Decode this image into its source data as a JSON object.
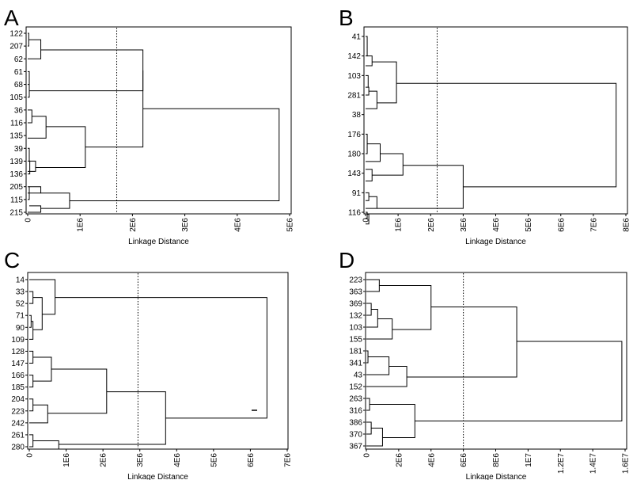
{
  "chart_data": [
    {
      "panel": "A",
      "type": "dendrogram",
      "orientation": "horizontal",
      "xlabel": "Linkage Distance",
      "xlim": [
        0,
        5000000
      ],
      "xticks": [
        "0",
        "1E6",
        "2E6",
        "3E6",
        "4E6",
        "5E6"
      ],
      "ylabels": [
        "122",
        "207",
        "62",
        "61",
        "68",
        "105",
        "36",
        "116",
        "135",
        "39",
        "139",
        "136",
        "205",
        "115",
        "215"
      ],
      "cut_height": 1700000,
      "merges": [
        {
          "h": 20000,
          "l": [
            0,
            0.0
          ],
          "r": [
            1,
            0.0
          ]
        },
        {
          "h": 250000,
          "l": [
            0.5,
            0.02
          ],
          "r": [
            2,
            0.0
          ]
        },
        {
          "h": 30000,
          "l": [
            3,
            0.0
          ],
          "r": [
            4,
            0.0
          ]
        },
        {
          "h": 30000,
          "l": [
            4,
            0.03
          ],
          "r": [
            5,
            0.0
          ]
        },
        {
          "h": 2200000,
          "l": [
            1.3,
            0.25
          ],
          "r": [
            4.5,
            0.03
          ]
        },
        {
          "h": 80000,
          "l": [
            6,
            0.0
          ],
          "r": [
            7,
            0.0
          ]
        },
        {
          "h": 350000,
          "l": [
            6.5,
            0.08
          ],
          "r": [
            8.2,
            0.0
          ]
        },
        {
          "h": 30000,
          "l": [
            9,
            0.0
          ],
          "r": [
            10,
            0.0
          ]
        },
        {
          "h": 40000,
          "l": [
            10,
            0.03
          ],
          "r": [
            11,
            0.0
          ]
        },
        {
          "h": 150000,
          "l": [
            10,
            0.04
          ],
          "r": [
            10.8,
            0.0
          ]
        },
        {
          "h": 1100000,
          "l": [
            7.3,
            0.35
          ],
          "r": [
            10.5,
            0.15
          ]
        },
        {
          "h": 2200000,
          "l": [
            2.9,
            2.2
          ],
          "r": [
            8.9,
            1.1
          ]
        },
        {
          "h": 30000,
          "l": [
            12,
            0.0
          ],
          "r": [
            13,
            0.0
          ]
        },
        {
          "h": 250000,
          "l": [
            12,
            0.03
          ],
          "r": [
            12.5,
            0.0
          ]
        },
        {
          "h": 250000,
          "l": [
            13.5,
            0.03
          ],
          "r": [
            14,
            0.0
          ]
        },
        {
          "h": 800000,
          "l": [
            12.5,
            0.25
          ],
          "r": [
            13.7,
            0.25
          ]
        },
        {
          "h": 4800000,
          "l": [
            5.9,
            2.2
          ],
          "r": [
            13.1,
            0.8
          ]
        }
      ]
    },
    {
      "panel": "B",
      "type": "dendrogram",
      "orientation": "horizontal",
      "xlabel": "Linkage Distance",
      "xlim": [
        0,
        8000000
      ],
      "xticks": [
        "0",
        "1E6",
        "2E6",
        "3E6",
        "4E6",
        "5E6",
        "6E6",
        "7E6",
        "8E6"
      ],
      "ylabels": [
        "41",
        "142",
        "103",
        "281",
        "38",
        "176",
        "180",
        "143",
        "91",
        "116"
      ],
      "cut_height": 2200000,
      "merges": [
        {
          "h": 50000,
          "l": [
            0,
            0.0
          ],
          "r": [
            1,
            0.0
          ]
        },
        {
          "h": 200000,
          "l": [
            1,
            0.05
          ],
          "r": [
            1.5,
            0.0
          ]
        },
        {
          "h": 80000,
          "l": [
            2,
            0.0
          ],
          "r": [
            2.6,
            0.0
          ]
        },
        {
          "h": 100000,
          "l": [
            2.6,
            0.08
          ],
          "r": [
            3,
            0.0
          ]
        },
        {
          "h": 350000,
          "l": [
            2.8,
            0.1
          ],
          "r": [
            3.7,
            0.0
          ]
        },
        {
          "h": 950000,
          "l": [
            1.3,
            0.2
          ],
          "r": [
            3.4,
            0.35
          ]
        },
        {
          "h": 50000,
          "l": [
            5,
            0.0
          ],
          "r": [
            6,
            0.0
          ]
        },
        {
          "h": 450000,
          "l": [
            5.5,
            0.05
          ],
          "r": [
            6.4,
            0.0
          ]
        },
        {
          "h": 200000,
          "l": [
            6.8,
            0.0
          ],
          "r": [
            7.4,
            0.0
          ]
        },
        {
          "h": 1150000,
          "l": [
            6,
            0.45
          ],
          "r": [
            7.1,
            0.2
          ]
        },
        {
          "h": 100000,
          "l": [
            8,
            0.0
          ],
          "r": [
            8.4,
            0.0
          ]
        },
        {
          "h": 350000,
          "l": [
            8.2,
            0.1
          ],
          "r": [
            8.8,
            0.0
          ]
        },
        {
          "h": 50000,
          "l": [
            9,
            0.0
          ],
          "r": [
            9.3,
            0.0
          ]
        },
        {
          "h": 100000,
          "l": [
            9.1,
            0.05
          ],
          "r": [
            9.6,
            0.0
          ]
        },
        {
          "h": 3000000,
          "l": [
            6.6,
            1.15
          ],
          "r": [
            8.8,
            0.35
          ]
        },
        {
          "h": 7700000,
          "l": [
            2.4,
            0.95
          ],
          "r": [
            7.7,
            3.0
          ]
        }
      ]
    },
    {
      "panel": "C",
      "type": "dendrogram",
      "orientation": "horizontal",
      "xlabel": "Linkage Distance",
      "xlim": [
        0,
        7000000
      ],
      "xticks": [
        "0",
        "1E6",
        "2E6",
        "3E6",
        "4E6",
        "5E6",
        "6E6",
        "7E6"
      ],
      "ylabels": [
        "14",
        "33",
        "52",
        "71",
        "90",
        "109",
        "128",
        "147",
        "166",
        "185",
        "204",
        "223",
        "242",
        "261",
        "280"
      ],
      "cut_height": 2950000,
      "merges": [
        {
          "h": 100000,
          "l": [
            1,
            0.0
          ],
          "r": [
            2,
            0.0
          ]
        },
        {
          "h": 50000,
          "l": [
            3,
            0.0
          ],
          "r": [
            4,
            0.0
          ]
        },
        {
          "h": 100000,
          "l": [
            3.5,
            0.05
          ],
          "r": [
            5,
            0.0
          ]
        },
        {
          "h": 350000,
          "l": [
            1.5,
            0.1
          ],
          "r": [
            4.2,
            0.1
          ]
        },
        {
          "h": 700000,
          "l": [
            0,
            0.0
          ],
          "r": [
            2.9,
            0.35
          ]
        },
        {
          "h": 100000,
          "l": [
            6,
            0.0
          ],
          "r": [
            7,
            0.0
          ]
        },
        {
          "h": 100000,
          "l": [
            8,
            0.0
          ],
          "r": [
            9,
            0.0
          ]
        },
        {
          "h": 600000,
          "l": [
            6.5,
            0.1
          ],
          "r": [
            8.5,
            0.1
          ]
        },
        {
          "h": 100000,
          "l": [
            10,
            0.0
          ],
          "r": [
            11,
            0.0
          ]
        },
        {
          "h": 500000,
          "l": [
            10.5,
            0.1
          ],
          "r": [
            12,
            0.0
          ]
        },
        {
          "h": 2100000,
          "l": [
            7.5,
            0.6
          ],
          "r": [
            11.2,
            0.5
          ]
        },
        {
          "h": 100000,
          "l": [
            13,
            0.0
          ],
          "r": [
            14,
            0.0
          ]
        },
        {
          "h": 800000,
          "l": [
            13.5,
            0.1
          ],
          "r": [
            14.2,
            0.0
          ]
        },
        {
          "h": 3700000,
          "l": [
            9.4,
            2.1
          ],
          "r": [
            13.8,
            0.8
          ]
        },
        {
          "h": 6450000,
          "l": [
            1.5,
            0.7
          ],
          "r": [
            11.6,
            3.7
          ]
        }
      ]
    },
    {
      "panel": "D",
      "type": "dendrogram",
      "orientation": "horizontal",
      "xlabel": "Linkage Distance",
      "xlim": [
        0,
        16000000
      ],
      "xticks": [
        "0",
        "2E6",
        "4E6",
        "6E6",
        "8E6",
        "1E7",
        "1.2E7",
        "1.4E7",
        "1.6E7"
      ],
      "ylabels": [
        "223",
        "363",
        "369",
        "132",
        "103",
        "155",
        "181",
        "341",
        "43",
        "152",
        "263",
        "316",
        "386",
        "370",
        "367"
      ],
      "cut_height": 6000000,
      "merges": [
        {
          "h": 800000,
          "l": [
            0,
            0.0
          ],
          "r": [
            1,
            0.0
          ]
        },
        {
          "h": 300000,
          "l": [
            2,
            0.0
          ],
          "r": [
            3,
            0.0
          ]
        },
        {
          "h": 700000,
          "l": [
            2.5,
            0.3
          ],
          "r": [
            4,
            0.0
          ]
        },
        {
          "h": 1600000,
          "l": [
            3.3,
            0.7
          ],
          "r": [
            5,
            0.0
          ]
        },
        {
          "h": 4000000,
          "l": [
            0.5,
            0.8
          ],
          "r": [
            4.2,
            1.6
          ]
        },
        {
          "h": 100000,
          "l": [
            6,
            0.0
          ],
          "r": [
            7,
            0.0
          ]
        },
        {
          "h": 1400000,
          "l": [
            6.5,
            0.1
          ],
          "r": [
            8,
            0.0
          ]
        },
        {
          "h": 2500000,
          "l": [
            7.3,
            1.4
          ],
          "r": [
            9,
            0.0
          ]
        },
        {
          "h": 9300000,
          "l": [
            2.3,
            4.0
          ],
          "r": [
            8.2,
            2.5
          ]
        },
        {
          "h": 200000,
          "l": [
            10,
            0.0
          ],
          "r": [
            11,
            0.0
          ]
        },
        {
          "h": 300000,
          "l": [
            12,
            0.0
          ],
          "r": [
            13,
            0.0
          ]
        },
        {
          "h": 1000000,
          "l": [
            12.5,
            0.3
          ],
          "r": [
            14,
            0.0
          ]
        },
        {
          "h": 3000000,
          "l": [
            10.5,
            0.2
          ],
          "r": [
            13.3,
            1.0
          ]
        },
        {
          "h": 15800000,
          "l": [
            5.2,
            9.3
          ],
          "r": [
            11.9,
            3.0
          ]
        }
      ]
    }
  ]
}
